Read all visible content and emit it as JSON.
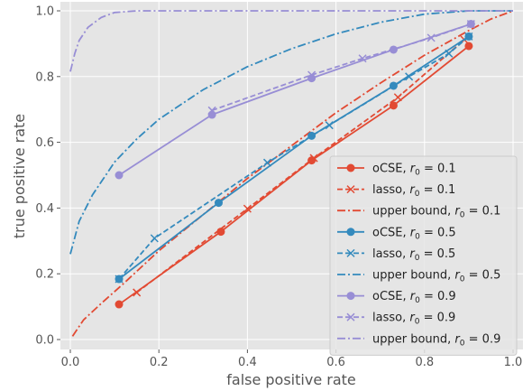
{
  "chart_data": {
    "type": "line",
    "xlabel": "false positive rate",
    "ylabel": "true positive rate",
    "xlim": [
      0.0,
      1.0
    ],
    "ylim": [
      0.0,
      1.0
    ],
    "xticks": [
      "0.0",
      "0.2",
      "0.4",
      "0.6",
      "0.8",
      "1.0"
    ],
    "yticks": [
      "0.0",
      "0.2",
      "0.4",
      "0.6",
      "0.8",
      "1.0"
    ],
    "grid": true,
    "legend_position": "lower-right",
    "colors": {
      "r0_0_1": "#E24A33",
      "r0_0_5": "#348ABD",
      "r0_0_9": "#988ED5",
      "background": "#E5E5E5",
      "grid": "#FFFFFF"
    },
    "series": [
      {
        "name": "oCSE",
        "r0": "0.1",
        "style": "solid-circle",
        "color": "#E24A33",
        "points": [
          [
            0.11,
            0.107
          ],
          [
            0.34,
            0.328
          ],
          [
            0.545,
            0.545
          ],
          [
            0.73,
            0.712
          ],
          [
            0.9,
            0.893
          ]
        ]
      },
      {
        "name": "lasso",
        "r0": "0.1",
        "style": "dashed-x",
        "color": "#E24A33",
        "points": [
          [
            0.15,
            0.143
          ],
          [
            0.4,
            0.398
          ],
          [
            0.55,
            0.552
          ],
          [
            0.74,
            0.737
          ],
          [
            0.89,
            0.912
          ]
        ]
      },
      {
        "name": "upper bound",
        "r0": "0.1",
        "style": "dashdot",
        "color": "#E24A33",
        "points": [
          [
            0.005,
            0.01
          ],
          [
            0.03,
            0.06
          ],
          [
            0.07,
            0.11
          ],
          [
            0.12,
            0.17
          ],
          [
            0.2,
            0.27
          ],
          [
            0.3,
            0.38
          ],
          [
            0.4,
            0.49
          ],
          [
            0.5,
            0.59
          ],
          [
            0.6,
            0.69
          ],
          [
            0.7,
            0.78
          ],
          [
            0.8,
            0.865
          ],
          [
            0.9,
            0.94
          ],
          [
            0.95,
            0.975
          ],
          [
            1.0,
            1.0
          ]
        ]
      },
      {
        "name": "oCSE",
        "r0": "0.5",
        "style": "solid-circle",
        "color": "#348ABD",
        "points": [
          [
            0.11,
            0.184
          ],
          [
            0.335,
            0.416
          ],
          [
            0.545,
            0.62
          ],
          [
            0.73,
            0.772
          ],
          [
            0.9,
            0.922
          ]
        ]
      },
      {
        "name": "lasso",
        "r0": "0.5",
        "style": "dashed-x",
        "color": "#348ABD",
        "points": [
          [
            0.11,
            0.184
          ],
          [
            0.19,
            0.308
          ],
          [
            0.445,
            0.538
          ],
          [
            0.585,
            0.652
          ],
          [
            0.765,
            0.8
          ],
          [
            0.855,
            0.87
          ],
          [
            0.9,
            0.922
          ]
        ]
      },
      {
        "name": "upper bound",
        "r0": "0.5",
        "style": "dashdot",
        "color": "#348ABD",
        "points": [
          [
            0.0,
            0.26
          ],
          [
            0.02,
            0.36
          ],
          [
            0.05,
            0.44
          ],
          [
            0.1,
            0.54
          ],
          [
            0.15,
            0.61
          ],
          [
            0.2,
            0.67
          ],
          [
            0.3,
            0.76
          ],
          [
            0.4,
            0.83
          ],
          [
            0.5,
            0.885
          ],
          [
            0.6,
            0.93
          ],
          [
            0.7,
            0.965
          ],
          [
            0.8,
            0.99
          ],
          [
            0.9,
            1.0
          ],
          [
            1.0,
            1.0
          ]
        ]
      },
      {
        "name": "oCSE",
        "r0": "0.9",
        "style": "solid-circle",
        "color": "#988ED5",
        "points": [
          [
            0.11,
            0.5
          ],
          [
            0.32,
            0.684
          ],
          [
            0.545,
            0.795
          ],
          [
            0.73,
            0.882
          ],
          [
            0.905,
            0.96
          ]
        ]
      },
      {
        "name": "lasso",
        "r0": "0.9",
        "style": "dashed-x",
        "color": "#988ED5",
        "points": [
          [
            0.32,
            0.697
          ],
          [
            0.545,
            0.805
          ],
          [
            0.66,
            0.855
          ],
          [
            0.815,
            0.918
          ],
          [
            0.905,
            0.96
          ]
        ]
      },
      {
        "name": "upper bound",
        "r0": "0.9",
        "style": "dashdot",
        "color": "#988ED5",
        "points": [
          [
            0.0,
            0.815
          ],
          [
            0.01,
            0.87
          ],
          [
            0.02,
            0.91
          ],
          [
            0.04,
            0.95
          ],
          [
            0.07,
            0.98
          ],
          [
            0.1,
            0.995
          ],
          [
            0.15,
            1.0
          ],
          [
            1.0,
            1.0
          ]
        ]
      }
    ],
    "legend": [
      {
        "label": "oCSE, ",
        "r0": "0.1",
        "series_index": 0
      },
      {
        "label": "lasso, ",
        "r0": "0.1",
        "series_index": 1
      },
      {
        "label": "upper bound, ",
        "r0": "0.1",
        "series_index": 2
      },
      {
        "label": "oCSE, ",
        "r0": "0.5",
        "series_index": 3
      },
      {
        "label": "lasso, ",
        "r0": "0.5",
        "series_index": 4
      },
      {
        "label": "upper bound, ",
        "r0": "0.5",
        "series_index": 5
      },
      {
        "label": "oCSE, ",
        "r0": "0.9",
        "series_index": 6
      },
      {
        "label": "lasso, ",
        "r0": "0.9",
        "series_index": 7
      },
      {
        "label": "upper bound, ",
        "r0": "0.9",
        "series_index": 8
      }
    ],
    "legend_symbol": "r",
    "legend_subscript": "0"
  }
}
